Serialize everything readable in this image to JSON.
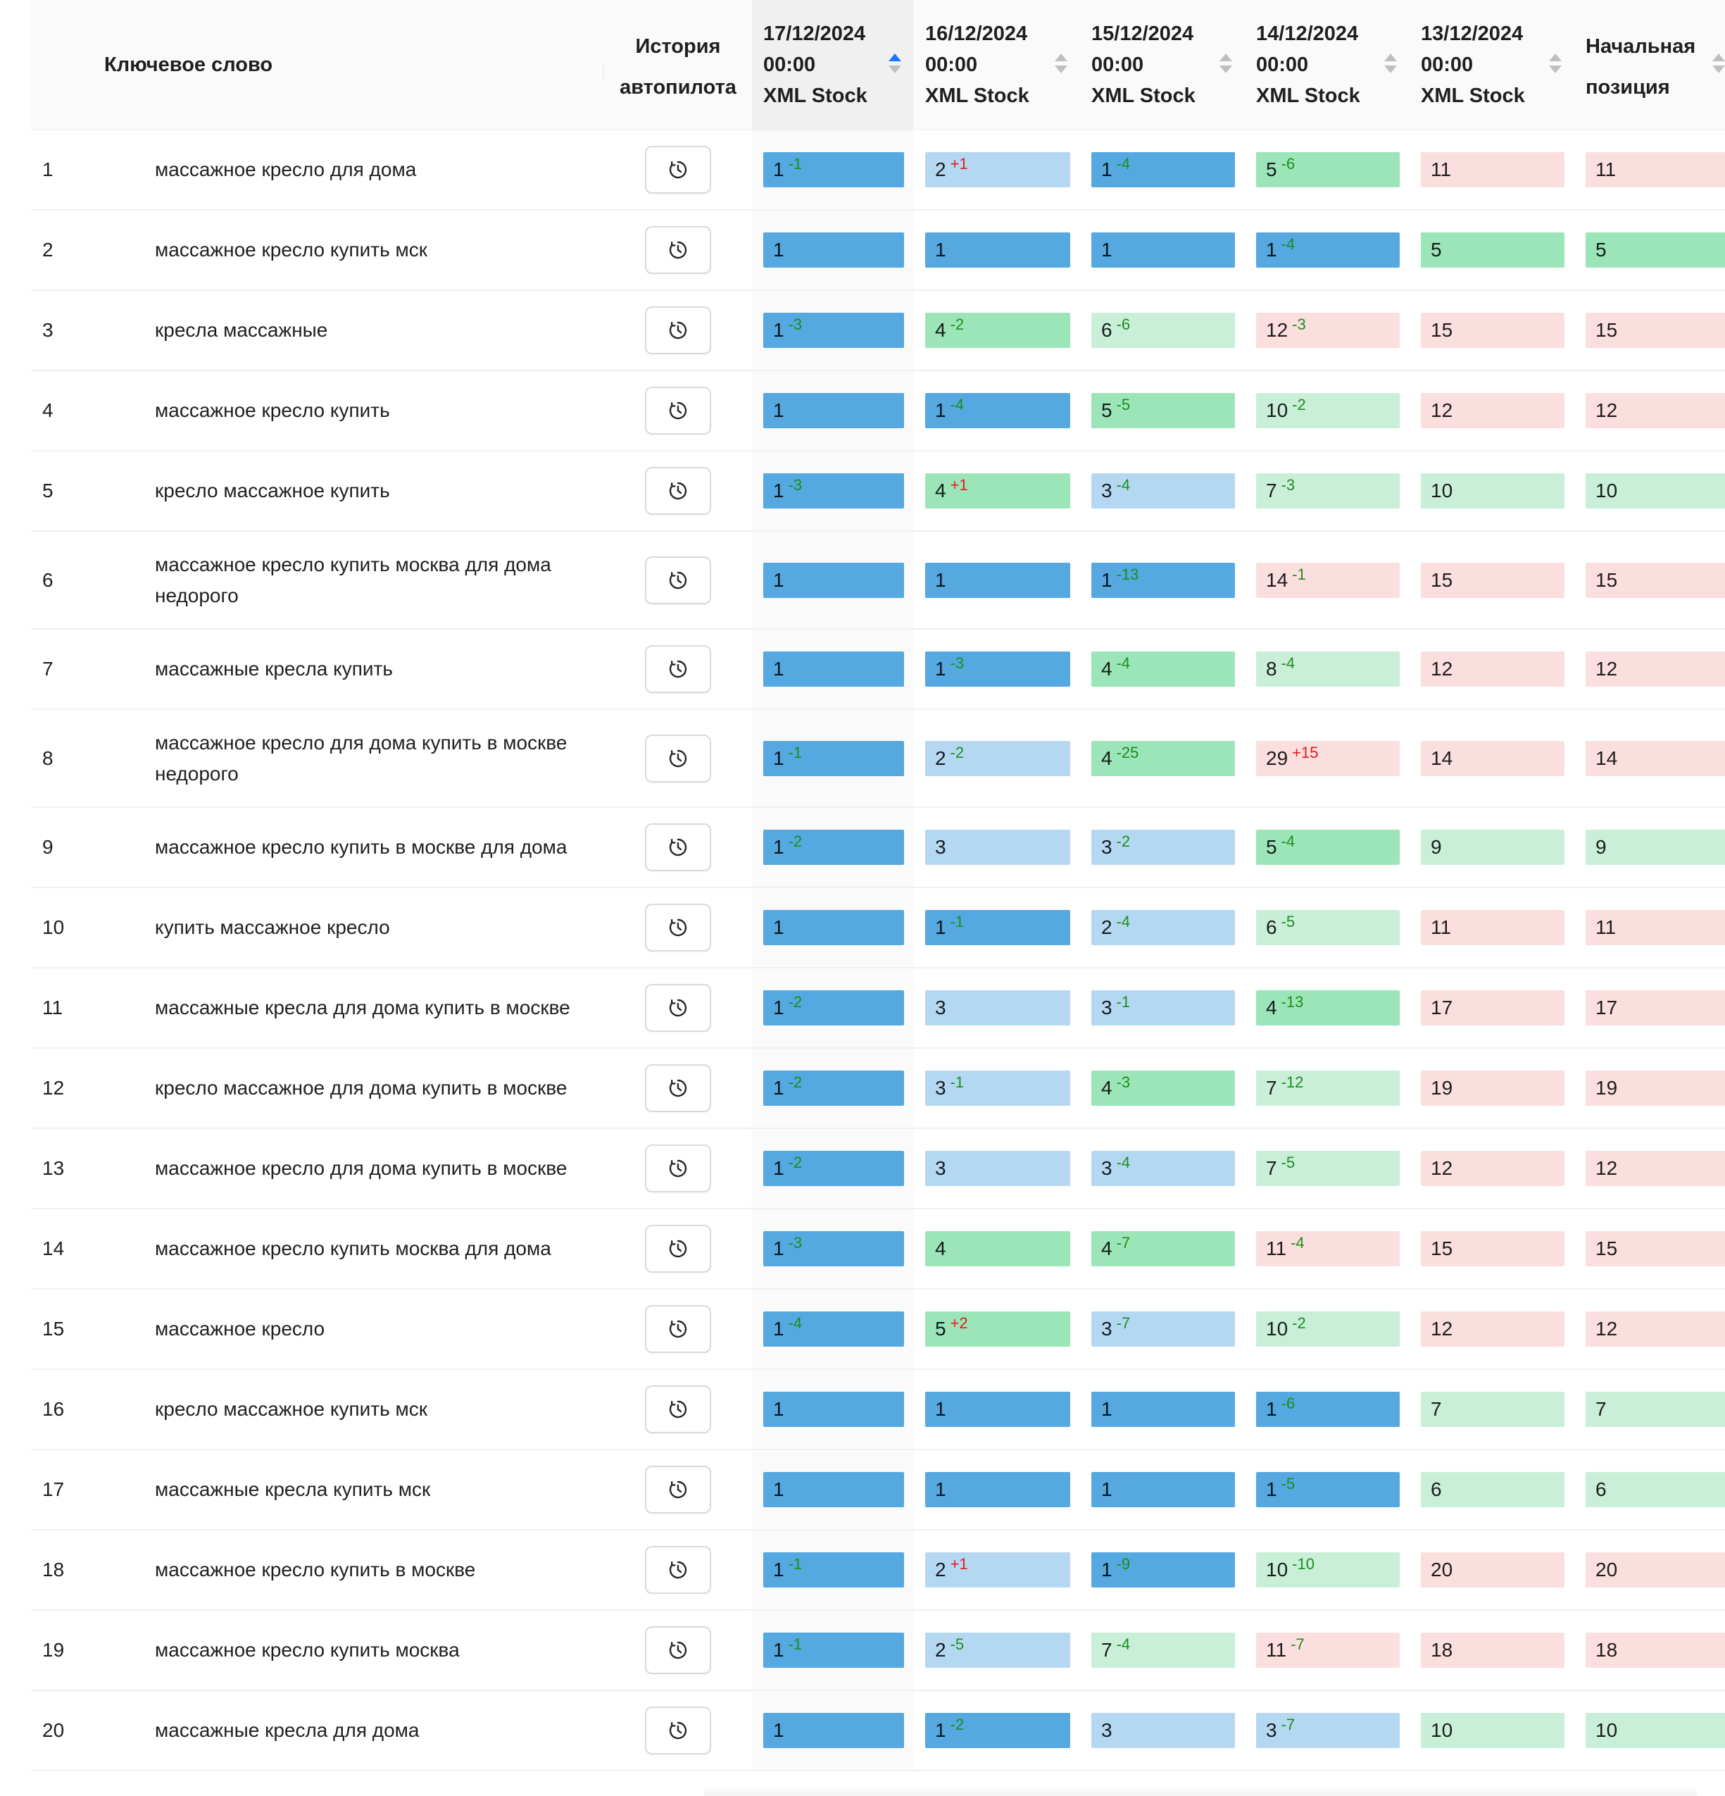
{
  "headers": {
    "keyword": "Ключевое слово",
    "history": [
      "История",
      "автопилота"
    ],
    "dates": [
      {
        "date": "17/12/2024",
        "time": "00:00",
        "engine": "XML Stock"
      },
      {
        "date": "16/12/2024",
        "time": "00:00",
        "engine": "XML Stock"
      },
      {
        "date": "15/12/2024",
        "time": "00:00",
        "engine": "XML Stock"
      },
      {
        "date": "14/12/2024",
        "time": "00:00",
        "engine": "XML Stock"
      },
      {
        "date": "13/12/2024",
        "time": "00:00",
        "engine": "XML Stock"
      }
    ],
    "initial": [
      "Начальная",
      "позиция"
    ]
  },
  "colors": {
    "top": "#55a8e0",
    "top3": "#b5d8f2",
    "top5": "#9ce5b9",
    "top10": "#c9efd9",
    "below": "#fbdfdf",
    "improved": "#1b8e1b",
    "worsened": "#e11b1b",
    "sort_active": "#1677ff"
  },
  "rows": [
    {
      "n": "1",
      "kw": "массажное кресло для дома",
      "pos": [
        [
          "1",
          "-1"
        ],
        [
          "2",
          "+1"
        ],
        [
          "1",
          "-4"
        ],
        [
          "5",
          "-6"
        ],
        [
          "11",
          ""
        ],
        [
          "11",
          ""
        ]
      ]
    },
    {
      "n": "2",
      "kw": "массажное кресло купить мск",
      "pos": [
        [
          "1",
          ""
        ],
        [
          "1",
          ""
        ],
        [
          "1",
          ""
        ],
        [
          "1",
          "-4"
        ],
        [
          "5",
          ""
        ],
        [
          "5",
          ""
        ]
      ]
    },
    {
      "n": "3",
      "kw": "кресла массажные",
      "pos": [
        [
          "1",
          "-3"
        ],
        [
          "4",
          "-2"
        ],
        [
          "6",
          "-6"
        ],
        [
          "12",
          "-3"
        ],
        [
          "15",
          ""
        ],
        [
          "15",
          ""
        ]
      ]
    },
    {
      "n": "4",
      "kw": "массажное кресло купить",
      "pos": [
        [
          "1",
          ""
        ],
        [
          "1",
          "-4"
        ],
        [
          "5",
          "-5"
        ],
        [
          "10",
          "-2"
        ],
        [
          "12",
          ""
        ],
        [
          "12",
          ""
        ]
      ]
    },
    {
      "n": "5",
      "kw": "кресло массажное купить",
      "pos": [
        [
          "1",
          "-3"
        ],
        [
          "4",
          "+1"
        ],
        [
          "3",
          "-4"
        ],
        [
          "7",
          "-3"
        ],
        [
          "10",
          ""
        ],
        [
          "10",
          ""
        ]
      ]
    },
    {
      "n": "6",
      "kw": "массажное кресло купить москва для дома недорого",
      "pos": [
        [
          "1",
          ""
        ],
        [
          "1",
          ""
        ],
        [
          "1",
          "-13"
        ],
        [
          "14",
          "-1"
        ],
        [
          "15",
          ""
        ],
        [
          "15",
          ""
        ]
      ]
    },
    {
      "n": "7",
      "kw": "массажные кресла купить",
      "pos": [
        [
          "1",
          ""
        ],
        [
          "1",
          "-3"
        ],
        [
          "4",
          "-4"
        ],
        [
          "8",
          "-4"
        ],
        [
          "12",
          ""
        ],
        [
          "12",
          ""
        ]
      ]
    },
    {
      "n": "8",
      "kw": "массажное кресло для дома купить в москве недорого",
      "pos": [
        [
          "1",
          "-1"
        ],
        [
          "2",
          "-2"
        ],
        [
          "4",
          "-25"
        ],
        [
          "29",
          "+15"
        ],
        [
          "14",
          ""
        ],
        [
          "14",
          ""
        ]
      ]
    },
    {
      "n": "9",
      "kw": "массажное кресло купить в москве для дома",
      "pos": [
        [
          "1",
          "-2"
        ],
        [
          "3",
          ""
        ],
        [
          "3",
          "-2"
        ],
        [
          "5",
          "-4"
        ],
        [
          "9",
          ""
        ],
        [
          "9",
          ""
        ]
      ]
    },
    {
      "n": "10",
      "kw": "купить массажное кресло",
      "pos": [
        [
          "1",
          ""
        ],
        [
          "1",
          "-1"
        ],
        [
          "2",
          "-4"
        ],
        [
          "6",
          "-5"
        ],
        [
          "11",
          ""
        ],
        [
          "11",
          ""
        ]
      ]
    },
    {
      "n": "11",
      "kw": "массажные кресла для дома купить в москве",
      "pos": [
        [
          "1",
          "-2"
        ],
        [
          "3",
          ""
        ],
        [
          "3",
          "-1"
        ],
        [
          "4",
          "-13"
        ],
        [
          "17",
          ""
        ],
        [
          "17",
          ""
        ]
      ]
    },
    {
      "n": "12",
      "kw": "кресло массажное для дома купить в москве",
      "pos": [
        [
          "1",
          "-2"
        ],
        [
          "3",
          "-1"
        ],
        [
          "4",
          "-3"
        ],
        [
          "7",
          "-12"
        ],
        [
          "19",
          ""
        ],
        [
          "19",
          ""
        ]
      ]
    },
    {
      "n": "13",
      "kw": "массажное кресло для дома купить в москве",
      "pos": [
        [
          "1",
          "-2"
        ],
        [
          "3",
          ""
        ],
        [
          "3",
          "-4"
        ],
        [
          "7",
          "-5"
        ],
        [
          "12",
          ""
        ],
        [
          "12",
          ""
        ]
      ]
    },
    {
      "n": "14",
      "kw": "массажное кресло купить москва для дома",
      "pos": [
        [
          "1",
          "-3"
        ],
        [
          "4",
          ""
        ],
        [
          "4",
          "-7"
        ],
        [
          "11",
          "-4"
        ],
        [
          "15",
          ""
        ],
        [
          "15",
          ""
        ]
      ]
    },
    {
      "n": "15",
      "kw": "массажное кресло",
      "pos": [
        [
          "1",
          "-4"
        ],
        [
          "5",
          "+2"
        ],
        [
          "3",
          "-7"
        ],
        [
          "10",
          "-2"
        ],
        [
          "12",
          ""
        ],
        [
          "12",
          ""
        ]
      ]
    },
    {
      "n": "16",
      "kw": "кресло массажное купить мск",
      "pos": [
        [
          "1",
          ""
        ],
        [
          "1",
          ""
        ],
        [
          "1",
          ""
        ],
        [
          "1",
          "-6"
        ],
        [
          "7",
          ""
        ],
        [
          "7",
          ""
        ]
      ]
    },
    {
      "n": "17",
      "kw": "массажные кресла купить мск",
      "pos": [
        [
          "1",
          ""
        ],
        [
          "1",
          ""
        ],
        [
          "1",
          ""
        ],
        [
          "1",
          "-5"
        ],
        [
          "6",
          ""
        ],
        [
          "6",
          ""
        ]
      ]
    },
    {
      "n": "18",
      "kw": "массажное кресло купить в москве",
      "pos": [
        [
          "1",
          "-1"
        ],
        [
          "2",
          "+1"
        ],
        [
          "1",
          "-9"
        ],
        [
          "10",
          "-10"
        ],
        [
          "20",
          ""
        ],
        [
          "20",
          ""
        ]
      ]
    },
    {
      "n": "19",
      "kw": "массажное кресло купить москва",
      "pos": [
        [
          "1",
          "-1"
        ],
        [
          "2",
          "-5"
        ],
        [
          "7",
          "-4"
        ],
        [
          "11",
          "-7"
        ],
        [
          "18",
          ""
        ],
        [
          "18",
          ""
        ]
      ]
    },
    {
      "n": "20",
      "kw": "массажные кресла для дома",
      "pos": [
        [
          "1",
          ""
        ],
        [
          "1",
          "-2"
        ],
        [
          "3",
          ""
        ],
        [
          "3",
          "-7"
        ],
        [
          "10",
          ""
        ],
        [
          "10",
          ""
        ]
      ]
    }
  ]
}
